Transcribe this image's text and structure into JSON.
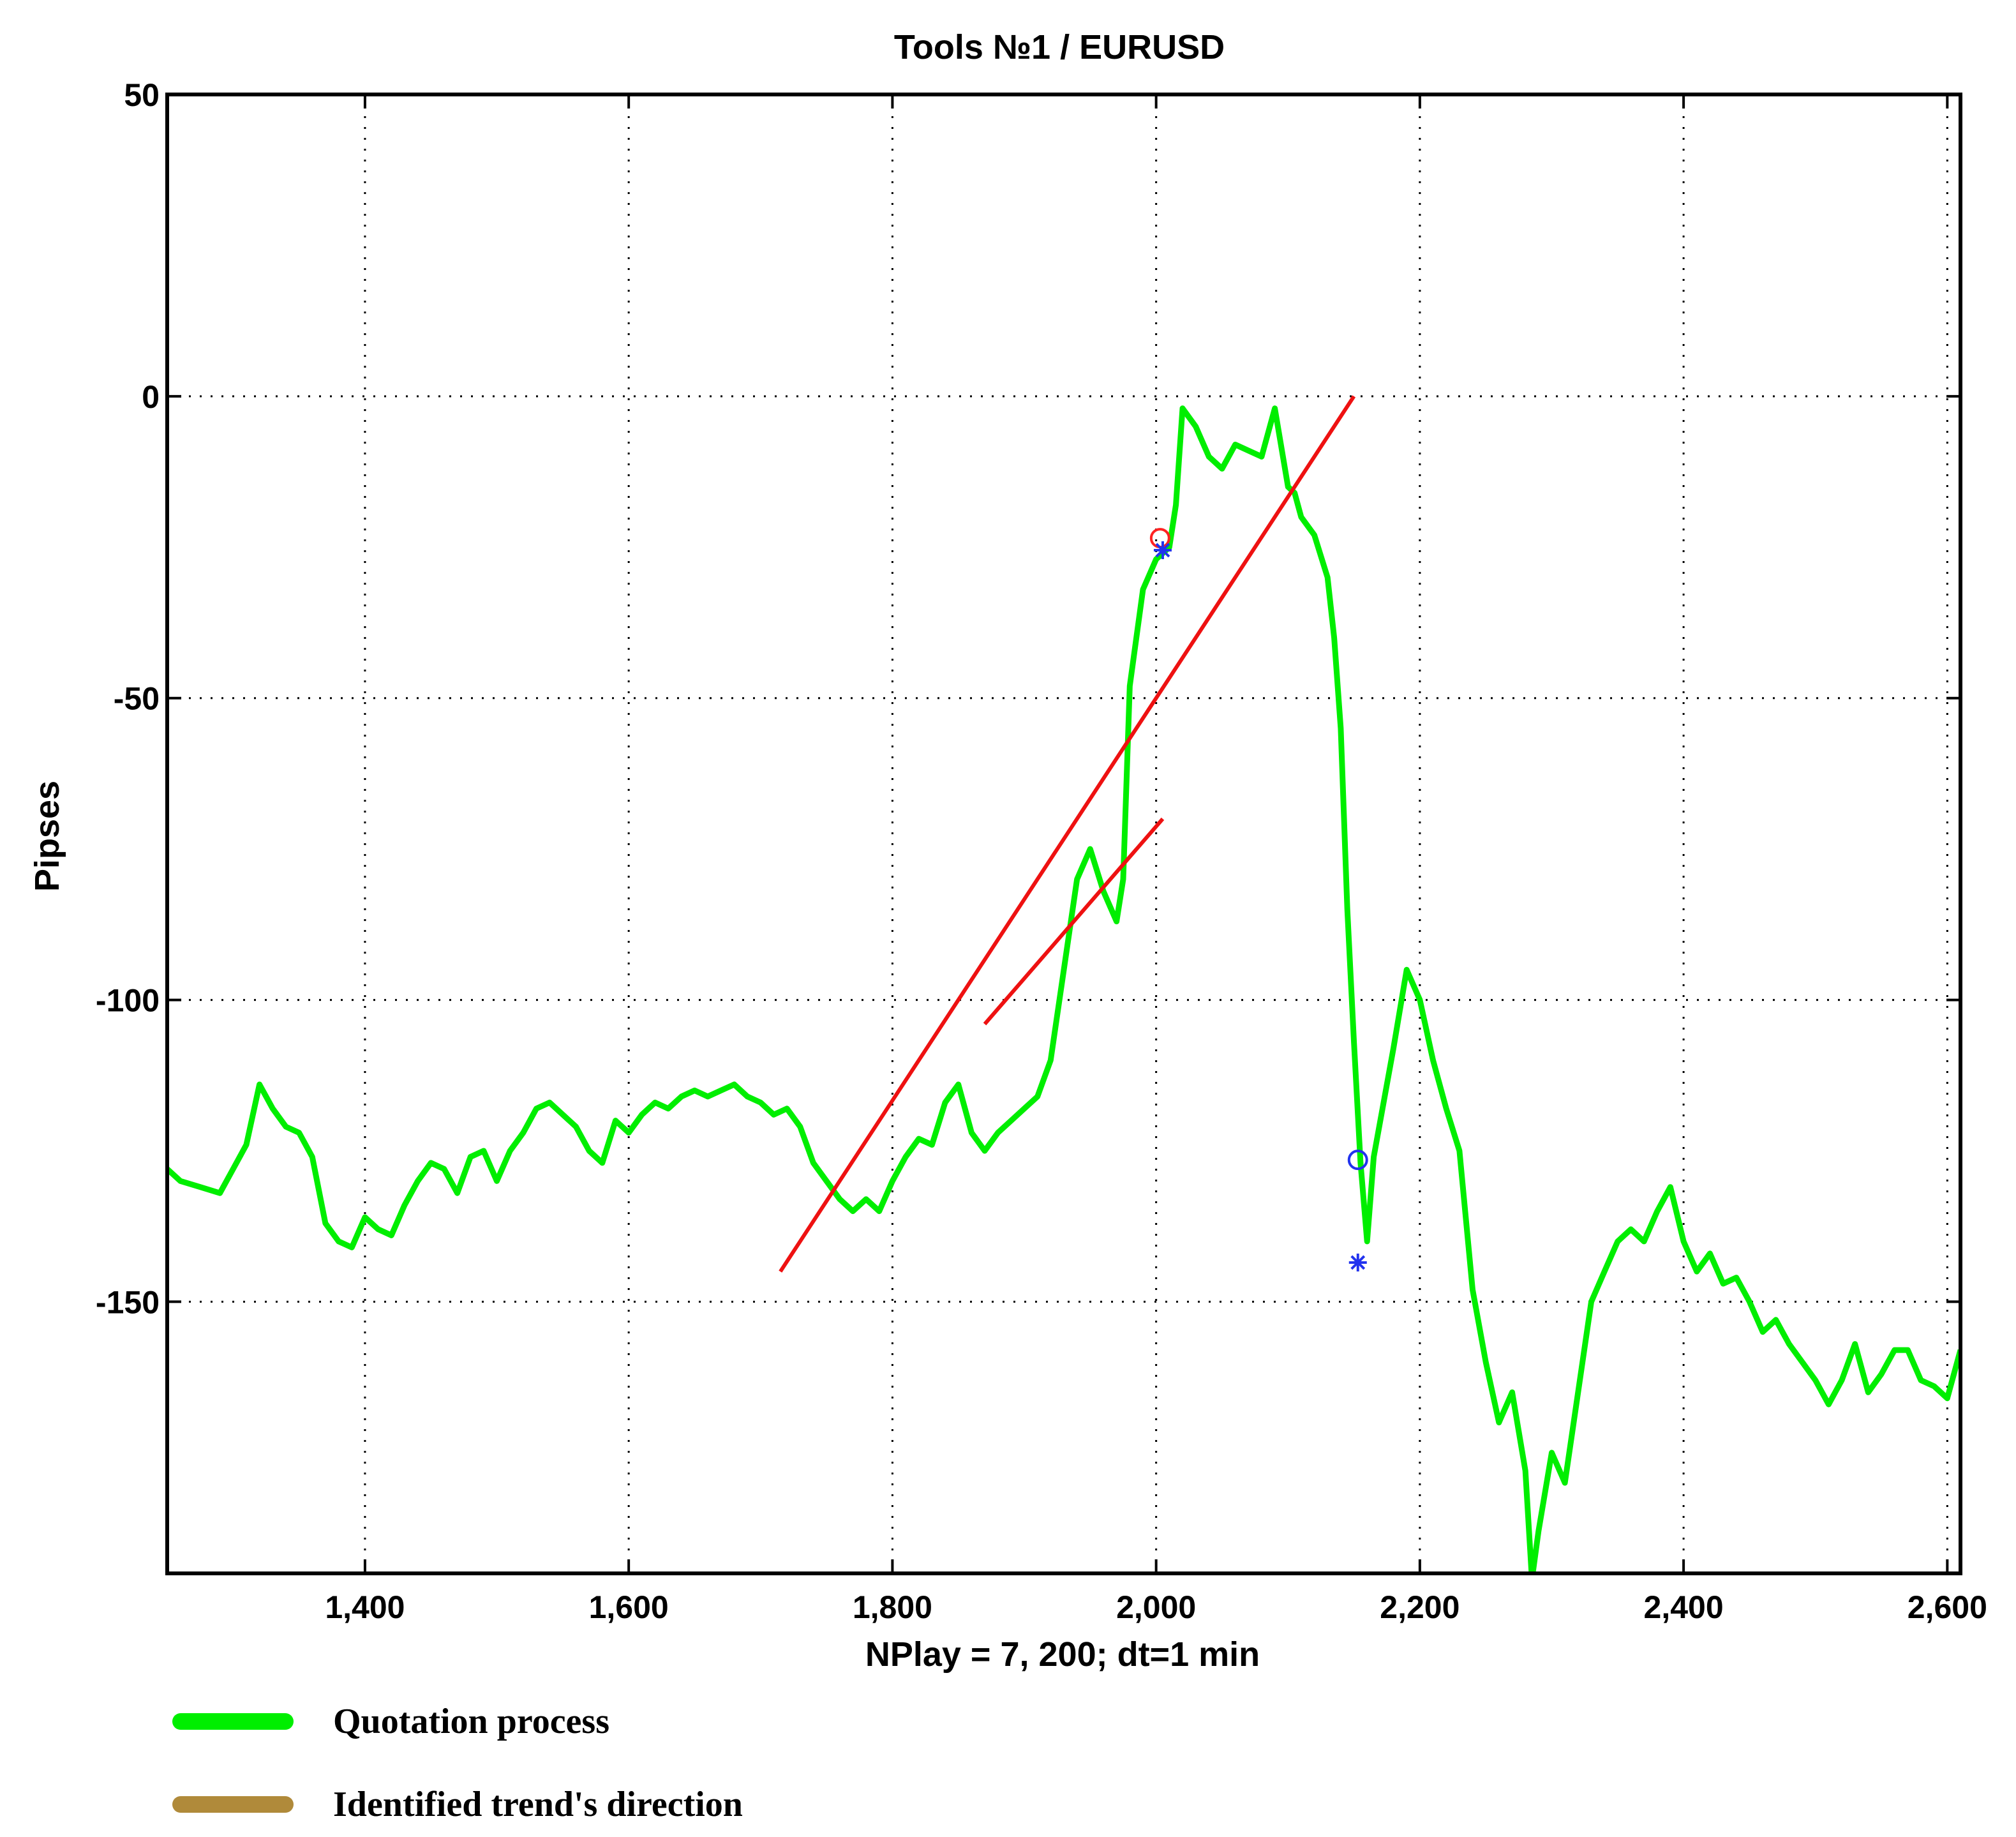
{
  "chart_data": {
    "type": "line",
    "title": "Tools  №1 / EURUSD",
    "xlabel": "NPlay = 7, 200;  dt=1 min",
    "ylabel": "Pipses",
    "xlim": [
      1250,
      2610
    ],
    "ylim": [
      -195,
      50
    ],
    "xticks": [
      1400,
      1600,
      1800,
      2000,
      2200,
      2400,
      2600
    ],
    "xtick_labels": [
      "1,400",
      "1,600",
      "1,800",
      "2,000",
      "2,200",
      "2,400",
      "2,600"
    ],
    "yticks": [
      50,
      0,
      -50,
      -100,
      -150
    ],
    "ytick_labels": [
      "50",
      "0",
      "-50",
      "-100",
      "-150"
    ],
    "grid": true,
    "legend_position": "below-plot-left",
    "series": [
      {
        "name": "Quotation process",
        "color": "#00ee00",
        "x": [
          1250,
          1260,
          1275,
          1290,
          1300,
          1310,
          1320,
          1330,
          1340,
          1350,
          1360,
          1370,
          1380,
          1390,
          1400,
          1410,
          1420,
          1430,
          1440,
          1450,
          1460,
          1470,
          1480,
          1490,
          1500,
          1510,
          1520,
          1530,
          1540,
          1550,
          1560,
          1570,
          1580,
          1590,
          1600,
          1610,
          1620,
          1630,
          1640,
          1650,
          1660,
          1670,
          1680,
          1690,
          1700,
          1710,
          1720,
          1730,
          1740,
          1750,
          1760,
          1770,
          1780,
          1790,
          1800,
          1810,
          1820,
          1830,
          1840,
          1850,
          1860,
          1870,
          1880,
          1890,
          1900,
          1910,
          1920,
          1930,
          1940,
          1950,
          1960,
          1970,
          1975,
          1980,
          1990,
          2000,
          2005,
          2010,
          2015,
          2020,
          2030,
          2040,
          2050,
          2060,
          2070,
          2080,
          2090,
          2100,
          2105,
          2110,
          2120,
          2130,
          2135,
          2140,
          2145,
          2150,
          2155,
          2160,
          2165,
          2170,
          2180,
          2190,
          2200,
          2210,
          2220,
          2230,
          2240,
          2250,
          2260,
          2270,
          2280,
          2285,
          2290,
          2300,
          2310,
          2320,
          2330,
          2340,
          2350,
          2360,
          2370,
          2380,
          2390,
          2400,
          2410,
          2420,
          2430,
          2440,
          2450,
          2460,
          2470,
          2480,
          2490,
          2500,
          2510,
          2520,
          2530,
          2540,
          2550,
          2560,
          2570,
          2580,
          2590,
          2600,
          2610
        ],
        "y": [
          -128,
          -130,
          -131,
          -132,
          -128,
          -124,
          -114,
          -118,
          -121,
          -122,
          -126,
          -137,
          -140,
          -141,
          -136,
          -138,
          -139,
          -134,
          -130,
          -127,
          -128,
          -132,
          -126,
          -125,
          -130,
          -125,
          -122,
          -118,
          -117,
          -119,
          -121,
          -125,
          -127,
          -120,
          -122,
          -119,
          -117,
          -118,
          -116,
          -115,
          -116,
          -115,
          -114,
          -116,
          -117,
          -119,
          -118,
          -121,
          -127,
          -130,
          -133,
          -135,
          -133,
          -135,
          -130,
          -126,
          -123,
          -124,
          -117,
          -114,
          -122,
          -125,
          -122,
          -120,
          -118,
          -116,
          -110,
          -95,
          -80,
          -75,
          -82,
          -87,
          -80,
          -48,
          -32,
          -27,
          -26,
          -25,
          -18,
          -2,
          -5,
          -10,
          -12,
          -8,
          -9,
          -10,
          -2,
          -15,
          -16,
          -20,
          -23,
          -30,
          -40,
          -55,
          -85,
          -107,
          -127,
          -140,
          -126,
          -120,
          -108,
          -95,
          -100,
          -110,
          -118,
          -125,
          -148,
          -160,
          -170,
          -165,
          -178,
          -196,
          -188,
          -175,
          -180,
          -165,
          -150,
          -145,
          -140,
          -138,
          -140,
          -135,
          -131,
          -140,
          -145,
          -142,
          -147,
          -146,
          -150,
          -155,
          -153,
          -157,
          -160,
          -163,
          -167,
          -163,
          -157,
          -165,
          -162,
          -158,
          -158,
          -163,
          -164,
          -166,
          -158
        ]
      },
      {
        "name": "Identified trend's direction",
        "color": "#ee1111",
        "segments": [
          {
            "x": [
              1715,
              2150
            ],
            "y": [
              -145,
              0
            ]
          },
          {
            "x": [
              1870,
              2005
            ],
            "y": [
              -104,
              -70
            ]
          }
        ]
      }
    ],
    "markers": [
      {
        "shape": "circle",
        "color": "#ff2222",
        "x": 2003,
        "y": -23.5
      },
      {
        "shape": "star",
        "color": "#2233ee",
        "x": 2005,
        "y": -25.5
      },
      {
        "shape": "circle",
        "color": "#2233ee",
        "x": 2153,
        "y": -126.5
      },
      {
        "shape": "star",
        "color": "#2233ee",
        "x": 2153,
        "y": -143.5
      }
    ]
  },
  "legend": [
    {
      "label": "Quotation process",
      "color": "#00ee00"
    },
    {
      "label": "Identified trend's direction",
      "color": "#b08a3a"
    }
  ]
}
